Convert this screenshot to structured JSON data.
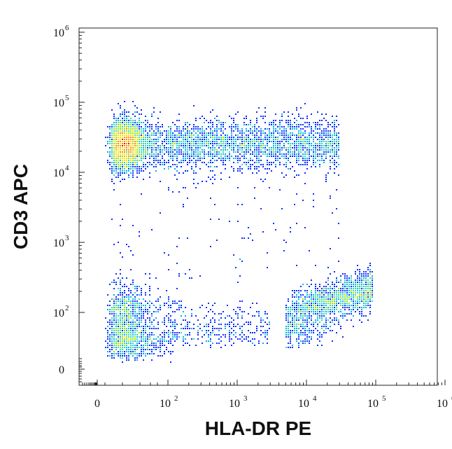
{
  "chart_data": {
    "type": "scatter",
    "plot_style": "flow-cytometry-density-dot-plot",
    "xlabel": "HLA-DR PE",
    "ylabel": "CD3 APC",
    "x_scale": "biexponential",
    "y_scale": "biexponential",
    "x_ticks": [
      {
        "value": 0,
        "base": "0",
        "exp": ""
      },
      {
        "value": 100,
        "base": "10",
        "exp": "2"
      },
      {
        "value": 1000,
        "base": "10",
        "exp": "3"
      },
      {
        "value": 10000,
        "base": "10",
        "exp": "4"
      },
      {
        "value": 100000,
        "base": "10",
        "exp": "5"
      },
      {
        "value": 1000000,
        "base": "10",
        "exp": "6"
      }
    ],
    "y_ticks": [
      {
        "value": 0,
        "base": "0",
        "exp": ""
      },
      {
        "value": 100,
        "base": "10",
        "exp": "2"
      },
      {
        "value": 1000,
        "base": "10",
        "exp": "3"
      },
      {
        "value": 10000,
        "base": "10",
        "exp": "4"
      },
      {
        "value": 100000,
        "base": "10",
        "exp": "5"
      },
      {
        "value": 1000000,
        "base": "10",
        "exp": "6"
      }
    ],
    "density_colors": [
      "#0000cc",
      "#0a2cff",
      "#00b4e6",
      "#3ad6b0",
      "#9be000",
      "#f2e400",
      "#ff8a00",
      "#e01010"
    ],
    "populations": [
      {
        "x_range": [
          15,
          30000
        ],
        "y_center": 25000,
        "y_spread_decades": 0.18,
        "x_peak": 40,
        "relative_size": 0.55
      },
      {
        "x_range": [
          15,
          90
        ],
        "y_center": 70,
        "y_spread_decades": 0.15,
        "relative_size": 0.2
      },
      {
        "x_range": [
          100,
          3000
        ],
        "y_center": 70,
        "y_spread_decades": 0.12,
        "relative_size": 0.05
      },
      {
        "x_range": [
          5000,
          90000
        ],
        "y_center": 110,
        "y_spread_decades": 0.15,
        "relative_size": 0.2
      }
    ]
  }
}
